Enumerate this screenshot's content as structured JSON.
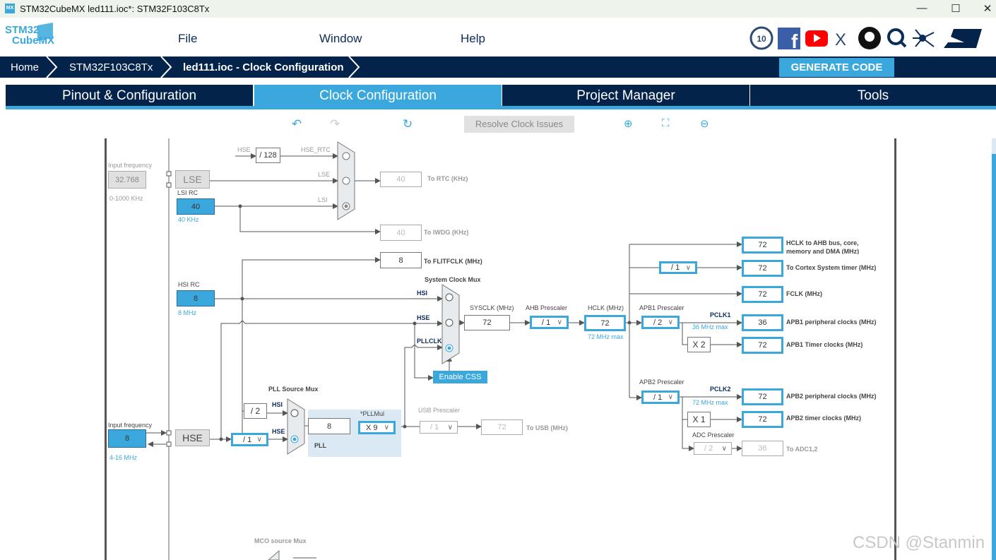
{
  "window": {
    "title": "STM32CubeMX led111.ioc*: STM32F103C8Tx",
    "icon": "MX",
    "minimize": "—",
    "maximize": "☐",
    "close": "✕"
  },
  "logo": {
    "line1": "STM32",
    "line2": "CubeMX"
  },
  "menu": [
    "File",
    "Window",
    "Help"
  ],
  "social_icons": [
    "anniversary-10-icon",
    "facebook-icon",
    "youtube-icon",
    "x-icon",
    "github-icon",
    "search-web-icon",
    "network-icon",
    "st-logo-icon"
  ],
  "breadcrumb": [
    "Home",
    "STM32F103C8Tx",
    "led111.ioc - Clock Configuration"
  ],
  "generate_code": "GENERATE CODE",
  "tabs": [
    {
      "label": "Pinout & Configuration",
      "active": false
    },
    {
      "label": "Clock Configuration",
      "active": true
    },
    {
      "label": "Project Manager",
      "active": false
    },
    {
      "label": "Tools",
      "active": false
    }
  ],
  "toolbar": {
    "resolve": "Resolve Clock Issues",
    "icons": [
      "undo-icon",
      "redo-icon",
      "refresh-icon",
      "zoom-in-icon",
      "fit-icon",
      "zoom-out-icon"
    ]
  },
  "colors": {
    "accent": "#3aa8dc",
    "navy": "#03234b"
  },
  "diagram": {
    "lse_input": {
      "label": "Input frequency",
      "value": "32.768",
      "range": "0-1000 KHz"
    },
    "lse": "LSE",
    "lsi": {
      "label": "LSI RC",
      "value": "40",
      "unit": "40 KHz"
    },
    "hsi": {
      "label": "HSI RC",
      "value": "8",
      "unit": "8 MHz"
    },
    "hse_input": {
      "label": "Input frequency",
      "value": "8",
      "range": "4-16 MHz"
    },
    "hse": "HSE",
    "rtc": {
      "hse_label": "HSE",
      "div": "/ 128",
      "hse_rtc": "HSE_RTC",
      "lse": "LSE",
      "lsi": "LSI",
      "value": "40",
      "out": "To RTC (KHz)"
    },
    "iwdg": {
      "value": "40",
      "out": "To IWDG (KHz)"
    },
    "flit": {
      "value": "8",
      "out": "To FLITFCLK (MHz)"
    },
    "sysmux": {
      "title": "System Clock Mux",
      "hsi": "HSI",
      "hse": "HSE",
      "pll": "PLLCLK",
      "selected": "PLLCLK"
    },
    "css": "Enable CSS",
    "sysclk": {
      "label": "SYSCLK (MHz)",
      "value": "72"
    },
    "ahb": {
      "label": "AHB Prescaler",
      "value": "/ 1"
    },
    "hclk": {
      "label": "HCLK (MHz)",
      "value": "72",
      "max": "72 MHz max"
    },
    "outputs": {
      "hclk_ahb": {
        "value": "72",
        "label1": "HCLK to AHB bus, core,",
        "label2": "memory and DMA (MHz)"
      },
      "cortex": {
        "div": "/ 1",
        "value": "72",
        "label": "To Cortex System timer (MHz)"
      },
      "fclk": {
        "value": "72",
        "label": "FCLK (MHz)"
      },
      "apb1": {
        "label": "APB1 Prescaler",
        "div": "/ 2",
        "pclk": "PCLK1",
        "max": "36 MHz max",
        "value": "36",
        "out": "APB1 peripheral clocks (MHz)",
        "mult": "X 2",
        "timer": "72",
        "timer_out": "APB1 Timer clocks (MHz)"
      },
      "apb2": {
        "label": "APB2 Prescaler",
        "div": "/ 1",
        "pclk": "PCLK2",
        "max": "72 MHz max",
        "value": "72",
        "out": "APB2 peripheral clocks (MHz)",
        "mult": "X 1",
        "timer": "72",
        "timer_out": "APB2 timer clocks (MHz)"
      },
      "adc": {
        "label": "ADC Prescaler",
        "div": "/ 2",
        "value": "36",
        "out": "To ADC1,2"
      }
    },
    "pllsrc": {
      "title": "PLL Source Mux",
      "div2": "/ 2",
      "hsi": "HSI",
      "hse": "HSE",
      "hse_div": "/ 1",
      "selected": "HSE"
    },
    "pll": {
      "value": "8",
      "label": "PLL",
      "mul_label": "*PLLMul",
      "mul": "X 9"
    },
    "usb": {
      "label": "USB Prescaler",
      "div": "/ 1",
      "value": "72",
      "out": "To USB (MHz)"
    },
    "mco": {
      "title": "MCO source Mux"
    }
  },
  "watermark": "CSDN @Stanmin"
}
